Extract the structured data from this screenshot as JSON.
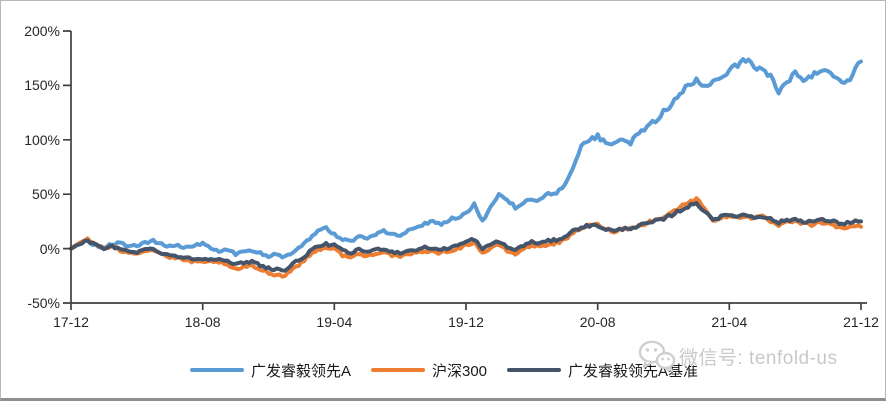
{
  "watermark": {
    "icon": "wechat-icon",
    "label": "微信号: tenfold-us"
  },
  "chart_data": {
    "type": "line",
    "title": "",
    "xlabel": "",
    "ylabel": "",
    "x_axis": {
      "tick_labels": [
        "17-12",
        "18-08",
        "19-04",
        "19-12",
        "20-08",
        "21-04",
        "21-12"
      ],
      "tick_months": [
        0,
        8,
        16,
        24,
        32,
        40,
        48
      ],
      "range_months": [
        0,
        48
      ]
    },
    "y_axis": {
      "tick_labels": [
        "200%",
        "150%",
        "100%",
        "50%",
        "0%",
        "-50%"
      ],
      "tick_values": [
        200,
        150,
        100,
        50,
        0,
        -50
      ],
      "unit": "%",
      "ylim": [
        -50,
        200
      ]
    },
    "grid": "off",
    "legend_position": "bottom",
    "sample_step_months": 0.5,
    "axis_color": "#404040",
    "series": [
      {
        "name": "广发睿毅领先A",
        "color": "#5B9BD5",
        "values": [
          0,
          4,
          7,
          3,
          1,
          4,
          5,
          2,
          3,
          5,
          7,
          4,
          2,
          3,
          1,
          3,
          5,
          1,
          -2,
          -1,
          -5,
          -3,
          -2,
          -4,
          -7,
          -5,
          -8,
          -4,
          2,
          9,
          17,
          19,
          13,
          8,
          7,
          11,
          10,
          13,
          16,
          14,
          12,
          17,
          20,
          23,
          25,
          23,
          27,
          29,
          32,
          42,
          25,
          38,
          50,
          44,
          38,
          42,
          46,
          44,
          50,
          52,
          58,
          75,
          95,
          100,
          103,
          98,
          95,
          101,
          97,
          105,
          112,
          118,
          126,
          133,
          141,
          150,
          155,
          147,
          152,
          158,
          165,
          170,
          173,
          168,
          165,
          158,
          144,
          152,
          161,
          156,
          158,
          163,
          165,
          158,
          152,
          160,
          172
        ]
      },
      {
        "name": "沪深300",
        "color": "#ED7D31",
        "values": [
          0,
          5,
          9,
          4,
          0,
          2,
          -2,
          -3,
          -4,
          -2,
          -1,
          -5,
          -8,
          -9,
          -11,
          -12,
          -13,
          -12,
          -12,
          -16,
          -19,
          -17,
          -16,
          -19,
          -22,
          -24,
          -25,
          -18,
          -13,
          -6,
          -1,
          1,
          0,
          -6,
          -8,
          -5,
          -7,
          -4,
          -3,
          -6,
          -8,
          -5,
          -4,
          -2,
          -3,
          -4,
          -2,
          0,
          3,
          6,
          -4,
          0,
          4,
          -2,
          -5,
          0,
          3,
          2,
          4,
          5,
          8,
          14,
          19,
          21,
          22,
          18,
          16,
          18,
          19,
          21,
          24,
          26,
          29,
          33,
          38,
          43,
          45,
          38,
          26,
          28,
          30,
          29,
          30,
          28,
          29,
          25,
          21,
          24,
          25,
          23,
          22,
          24,
          23,
          20,
          19,
          21,
          20
        ]
      },
      {
        "name": "广发睿毅领先A基准",
        "color": "#44546A",
        "values": [
          0,
          4,
          8,
          3,
          0,
          2,
          -1,
          -2,
          -3,
          -1,
          0,
          -4,
          -6,
          -7,
          -9,
          -9,
          -10,
          -9,
          -9,
          -12,
          -15,
          -13,
          -12,
          -15,
          -18,
          -19,
          -20,
          -14,
          -9,
          -3,
          2,
          4,
          3,
          -2,
          -4,
          -1,
          -3,
          -1,
          0,
          -3,
          -4,
          -2,
          -1,
          1,
          0,
          -1,
          1,
          3,
          6,
          9,
          -1,
          4,
          7,
          1,
          -1,
          3,
          6,
          5,
          7,
          8,
          11,
          16,
          20,
          21,
          21,
          18,
          16,
          18,
          19,
          21,
          23,
          25,
          27,
          31,
          35,
          39,
          41,
          35,
          27,
          29,
          31,
          30,
          31,
          29,
          30,
          27,
          24,
          26,
          27,
          25,
          25,
          26,
          26,
          24,
          23,
          25,
          25
        ]
      }
    ]
  }
}
